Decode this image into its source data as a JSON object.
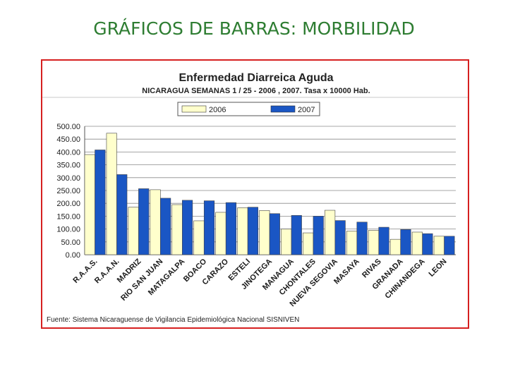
{
  "slide": {
    "title": "GRÁFICOS DE BARRAS: MORBILIDAD"
  },
  "chart_data": {
    "type": "bar",
    "title": "Enfermedad Diarreica Aguda",
    "subtitle": "NICARAGUA SEMANAS 1 / 25  -  2006 , 2007. Tasa x 10000 Hab.",
    "source": "Fuente: Sistema Nicaraguense de Vigilancia Epidemiológica Nacional SISNIVEN",
    "xlabel": "",
    "ylabel": "",
    "ylim": [
      0,
      500
    ],
    "yticks": [
      "0.00",
      "50.00",
      "100.00",
      "150.00",
      "200.00",
      "250.00",
      "300.00",
      "350.00",
      "400.00",
      "450.00",
      "500.00"
    ],
    "grid": true,
    "legend_position": "top",
    "categories": [
      "R.A.A.S.",
      "R.A.A.N.",
      "MADRIZ",
      "RIO SAN JUAN",
      "MATAGALPA",
      "BOACO",
      "CARAZO",
      "ESTELI",
      "JINOTEGA",
      "MANAGUA",
      "CHONTALES",
      "NUEVA SEGOVIA",
      "MASAYA",
      "RIVAS",
      "GRANADA",
      "CHINANDEGA",
      "LEON"
    ],
    "series": [
      {
        "name": "2006",
        "color": "#ffffcc",
        "values": [
          390,
          473,
          185,
          253,
          195,
          132,
          165,
          183,
          172,
          100,
          85,
          173,
          92,
          95,
          60,
          88,
          72
        ]
      },
      {
        "name": "2007",
        "color": "#1a56c4",
        "values": [
          408,
          312,
          257,
          220,
          212,
          210,
          203,
          185,
          160,
          153,
          150,
          133,
          127,
          107,
          98,
          82,
          72
        ]
      }
    ]
  }
}
